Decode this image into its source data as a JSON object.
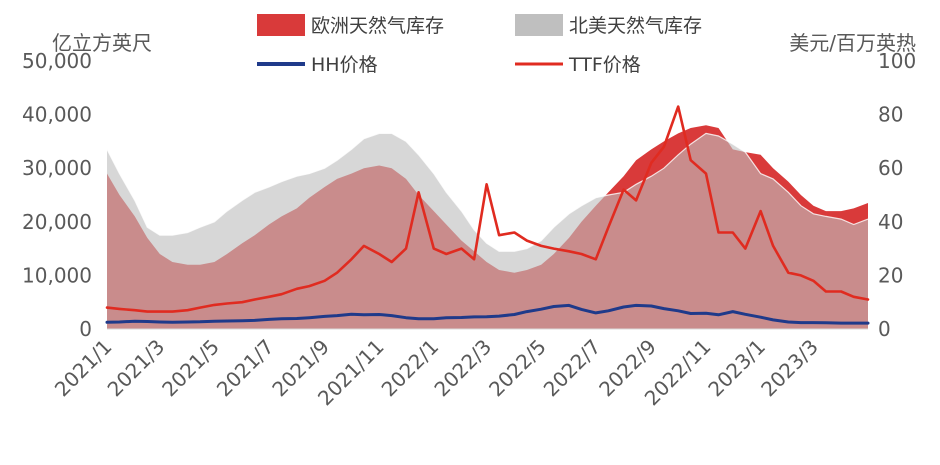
{
  "chart_data": {
    "type": "area",
    "xlabel": "",
    "x": [
      "2021-01-01",
      "2021-01-15",
      "2021-02-01",
      "2021-02-15",
      "2021-03-01",
      "2021-03-15",
      "2021-04-01",
      "2021-04-15",
      "2021-05-01",
      "2021-05-15",
      "2021-06-01",
      "2021-06-15",
      "2021-07-01",
      "2021-07-15",
      "2021-08-01",
      "2021-08-15",
      "2021-09-01",
      "2021-09-15",
      "2021-10-01",
      "2021-10-15",
      "2021-11-01",
      "2021-11-15",
      "2021-12-01",
      "2021-12-15",
      "2022-01-01",
      "2022-01-15",
      "2022-02-01",
      "2022-02-15",
      "2022-03-01",
      "2022-03-15",
      "2022-04-01",
      "2022-04-15",
      "2022-05-01",
      "2022-05-15",
      "2022-06-01",
      "2022-06-15",
      "2022-07-01",
      "2022-07-15",
      "2022-08-01",
      "2022-08-15",
      "2022-09-01",
      "2022-09-15",
      "2022-10-01",
      "2022-10-15",
      "2022-11-01",
      "2022-11-15",
      "2022-12-01",
      "2022-12-15",
      "2023-01-01",
      "2023-01-15",
      "2023-02-01",
      "2023-02-15",
      "2023-03-01",
      "2023-03-15",
      "2023-04-01",
      "2023-04-15",
      "2023-05-01"
    ],
    "xticks": [
      "2021/1",
      "2021/3",
      "2021/5",
      "2021/7",
      "2021/9",
      "2021/11",
      "2022/1",
      "2022/3",
      "2022/5",
      "2022/7",
      "2022/9",
      "2022/11",
      "2023/1",
      "2023/3"
    ],
    "xtick_dates": [
      "2021-01-01",
      "2021-03-01",
      "2021-05-01",
      "2021-07-01",
      "2021-09-01",
      "2021-11-01",
      "2022-01-01",
      "2022-03-01",
      "2022-05-01",
      "2022-07-01",
      "2022-09-01",
      "2022-11-01",
      "2023-01-01",
      "2023-03-01"
    ],
    "y_left": {
      "label": "亿立方英尺",
      "ylim": [
        0,
        50000
      ],
      "ticks": [
        "0",
        "10,000",
        "20,000",
        "30,000",
        "40,000",
        "50,000"
      ]
    },
    "y_right": {
      "label": "美元/百万英热",
      "ylim": [
        0,
        100
      ],
      "ticks": [
        "0",
        "20",
        "40",
        "60",
        "80",
        "100"
      ]
    },
    "legend_position": "top",
    "series": [
      {
        "name": "欧洲天然气库存",
        "kind": "area",
        "axis": "left",
        "color": "#d93a3a",
        "values": [
          29000,
          25000,
          21000,
          17000,
          14000,
          12500,
          12000,
          12000,
          12500,
          14000,
          16000,
          17500,
          19500,
          21000,
          22500,
          24500,
          26500,
          28000,
          29000,
          30000,
          30500,
          30000,
          28000,
          25000,
          22000,
          19500,
          16500,
          14500,
          12500,
          11000,
          10500,
          11000,
          12000,
          14000,
          17000,
          20000,
          23000,
          25500,
          28500,
          31500,
          33500,
          35000,
          36500,
          37500,
          38000,
          37500,
          33500,
          33000,
          32500,
          30000,
          27500,
          25000,
          23000,
          22000,
          22000,
          22500,
          23500
        ]
      },
      {
        "name": "北美天然气库存",
        "kind": "area",
        "axis": "left",
        "color": "#bfbfbf",
        "values": [
          33500,
          29000,
          24000,
          19000,
          17500,
          17500,
          18000,
          19000,
          20000,
          22000,
          24000,
          25500,
          26500,
          27500,
          28500,
          29000,
          30000,
          31500,
          33500,
          35500,
          36500,
          36500,
          35000,
          32500,
          29000,
          25500,
          22000,
          18500,
          16000,
          14500,
          14500,
          15000,
          16500,
          19000,
          21500,
          23000,
          24500,
          25000,
          25500,
          27000,
          28500,
          30000,
          32500,
          34500,
          36500,
          36000,
          34500,
          33000,
          29000,
          28000,
          25500,
          23000,
          21500,
          21000,
          20500,
          19500,
          20500
        ]
      },
      {
        "name": "HH价格",
        "kind": "line",
        "axis": "right",
        "color": "#1f3a8a",
        "values": [
          2.5,
          2.6,
          2.9,
          2.8,
          2.6,
          2.5,
          2.6,
          2.7,
          2.9,
          3.0,
          3.1,
          3.2,
          3.6,
          3.8,
          3.9,
          4.2,
          4.7,
          5.0,
          5.5,
          5.3,
          5.4,
          5.0,
          4.2,
          3.8,
          3.8,
          4.2,
          4.3,
          4.5,
          4.6,
          4.8,
          5.4,
          6.5,
          7.4,
          8.4,
          8.8,
          7.3,
          6.0,
          6.8,
          8.2,
          8.8,
          8.6,
          7.6,
          6.8,
          5.8,
          5.9,
          5.3,
          6.5,
          5.5,
          4.4,
          3.4,
          2.6,
          2.4,
          2.4,
          2.3,
          2.2,
          2.2,
          2.2
        ]
      },
      {
        "name": "TTF价格",
        "kind": "line",
        "axis": "right",
        "color": "#e02b20",
        "values": [
          8,
          7.5,
          7,
          6.5,
          6.5,
          6.5,
          7,
          8,
          9,
          9.5,
          10,
          11,
          12,
          13,
          15,
          16,
          18,
          21,
          26,
          31,
          28,
          25,
          30,
          51,
          30,
          28,
          30,
          26,
          54,
          35,
          36,
          33,
          31,
          30,
          29,
          28,
          26,
          38,
          52,
          48,
          62,
          68,
          83,
          63,
          58,
          36,
          36,
          30,
          44,
          31,
          21,
          20,
          18,
          14,
          14,
          12,
          11
        ]
      }
    ]
  }
}
